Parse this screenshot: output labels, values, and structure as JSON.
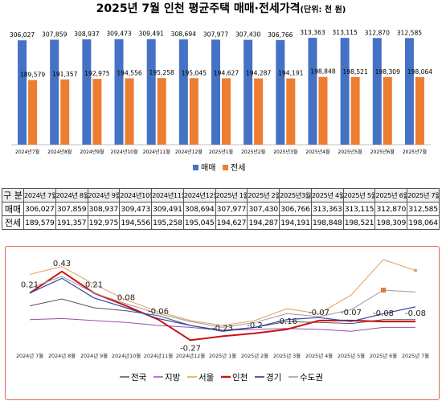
{
  "header": {
    "title": "2025년 7월 인천 평균주택 매매·전세가격",
    "unit": "(단위: 천 원)"
  },
  "colors": {
    "sale": "#4472c4",
    "jeonse": "#ed7d31",
    "nation": "#555555",
    "region": "#9b4fb0",
    "seoul": "#e0a060",
    "incheon": "#cc1111",
    "gyeonggi": "#3344aa",
    "capital": "#999999"
  },
  "chart_data": [
    {
      "type": "bar",
      "categories": [
        "2024년7월",
        "2024년8월",
        "2024년9월",
        "2024년10월",
        "2024년11월",
        "2024년12월",
        "2025년1월",
        "2025년2월",
        "2025년3월",
        "2025년4월",
        "2025년5월",
        "2025년6월",
        "2025년7월"
      ],
      "series": [
        {
          "name": "매매",
          "values": [
            306027,
            307859,
            308937,
            309473,
            309491,
            308694,
            307977,
            307430,
            306766,
            313363,
            313115,
            312870,
            312585
          ]
        },
        {
          "name": "전세",
          "values": [
            189579,
            191357,
            192975,
            194556,
            195258,
            195045,
            194627,
            194287,
            194191,
            198848,
            198521,
            198309,
            198064
          ]
        }
      ],
      "value_labels": {
        "sale": [
          "306,027",
          "307,859",
          "308,937",
          "309,473",
          "309,491",
          "308,694",
          "307,977",
          "307,430",
          "306,766",
          "313,363",
          "313,115",
          "312,870",
          "312,585"
        ],
        "jeonse": [
          "189,579",
          "191,357",
          "192,975",
          "194,556",
          "195,258",
          "195,045",
          "194,627",
          "194,287",
          "194,191",
          "198,848",
          "198,521",
          "198,309",
          "198,064"
        ]
      },
      "legend": [
        "매매",
        "전세"
      ],
      "legend_position": "bottom"
    },
    {
      "type": "table",
      "header": [
        "구 분",
        "2024년 7월",
        "2024년 8월",
        "2024년 9월",
        "2024년10월",
        "2024년11월",
        "2024년12월",
        "2025년 1월",
        "2025년 2월",
        "2025년3월",
        "2025년 4월",
        "2025년 5월",
        "2025년 6월",
        "2025년 7월"
      ],
      "rows": [
        {
          "label": "매매",
          "cells": [
            "306,027",
            "307,859",
            "308,937",
            "309,473",
            "309,491",
            "308,694",
            "307,977",
            "307,430",
            "306,766",
            "313,363",
            "313,115",
            "312,870",
            "312,585"
          ]
        },
        {
          "label": "전세",
          "cells": [
            "189,579",
            "191,357",
            "192,975",
            "194,556",
            "195,258",
            "195,045",
            "194,627",
            "194,287",
            "194,191",
            "198,848",
            "198,521",
            "198,309",
            "198,064"
          ]
        }
      ]
    },
    {
      "type": "line",
      "categories": [
        "2024년 7월",
        "2024년 8월",
        "2024년 9월",
        "2024년10월",
        "2024년11월",
        "2024년12월",
        "2025년 1월",
        "2025년 2월",
        "2025년 3월",
        "2025년 4월",
        "2025년 5월",
        "2025년 6월",
        "2025년 7월"
      ],
      "series": [
        {
          "name": "전국",
          "values": [
            0.08,
            0.15,
            0.06,
            0.03,
            -0.02,
            -0.12,
            -0.17,
            -0.14,
            -0.08,
            -0.09,
            -0.1,
            -0.06,
            -0.06
          ]
        },
        {
          "name": "지방",
          "values": [
            -0.06,
            -0.05,
            -0.07,
            -0.09,
            -0.12,
            -0.14,
            -0.17,
            -0.16,
            -0.15,
            -0.16,
            -0.18,
            -0.14,
            -0.14
          ]
        },
        {
          "name": "서울",
          "values": [
            0.4,
            0.48,
            0.3,
            0.14,
            0.02,
            -0.07,
            -0.12,
            -0.07,
            0.05,
            0.0,
            0.19,
            0.55,
            0.44
          ]
        },
        {
          "name": "인천",
          "values": [
            0.21,
            0.43,
            0.21,
            0.08,
            -0.06,
            -0.27,
            -0.23,
            -0.2,
            -0.16,
            -0.07,
            -0.07,
            -0.08,
            -0.08
          ]
        },
        {
          "name": "경기",
          "values": [
            0.21,
            0.36,
            0.16,
            0.06,
            -0.05,
            -0.12,
            -0.18,
            -0.14,
            -0.06,
            -0.04,
            -0.08,
            0.0,
            0.07
          ]
        },
        {
          "name": "수도권",
          "values": [
            0.26,
            0.38,
            0.21,
            0.1,
            0.0,
            -0.08,
            -0.14,
            -0.09,
            0.0,
            -0.03,
            0.04,
            0.24,
            0.22
          ]
        }
      ],
      "data_labels": {
        "series": "인천",
        "texts": [
          "0.21",
          "0.43",
          "0.21",
          "0.08",
          "-0.06",
          "-0.27",
          "-0.23",
          "-0.2",
          "-0.16",
          "-0.07",
          "-0.07",
          "-0.08",
          "-0.08"
        ]
      },
      "legend": [
        "전국",
        "지방",
        "서울",
        "인천",
        "경기",
        "수도권"
      ],
      "legend_position": "bottom",
      "grid": false
    }
  ]
}
